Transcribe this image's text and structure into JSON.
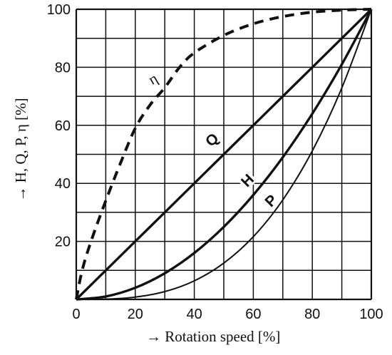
{
  "chart_data": {
    "type": "line",
    "xlabel": "→ Rotation speed [%]",
    "ylabel": "→ H, Q, P, η [%]",
    "xlim": [
      0,
      100
    ],
    "ylim": [
      0,
      100
    ],
    "x_ticks": [
      "0",
      "20",
      "40",
      "60",
      "80",
      "100"
    ],
    "y_ticks": [
      "20",
      "40",
      "60",
      "80",
      "100"
    ],
    "grid": true,
    "grid_step": 10,
    "series": [
      {
        "name": "Q",
        "style": "solid-thick",
        "x": [
          0,
          10,
          20,
          30,
          40,
          50,
          60,
          70,
          80,
          90,
          100
        ],
        "y": [
          0,
          10,
          20,
          30,
          40,
          50,
          60,
          70,
          80,
          90,
          100
        ]
      },
      {
        "name": "H",
        "style": "solid-thick",
        "x": [
          0,
          10,
          20,
          30,
          40,
          50,
          60,
          70,
          80,
          90,
          100
        ],
        "y": [
          0,
          1,
          4,
          9,
          16,
          25,
          36,
          49,
          64,
          81,
          100
        ]
      },
      {
        "name": "P",
        "style": "solid-thin",
        "x": [
          0,
          10,
          20,
          30,
          40,
          50,
          60,
          70,
          80,
          90,
          100
        ],
        "y": [
          0,
          0.1,
          0.8,
          2.7,
          6.4,
          12.5,
          21.6,
          34.3,
          51.2,
          72.9,
          100
        ]
      },
      {
        "name": "η",
        "style": "dashed-thick",
        "x": [
          0,
          2,
          5,
          10,
          15,
          20,
          25,
          30,
          35,
          40,
          50,
          60,
          70,
          80,
          90,
          100
        ],
        "y": [
          0,
          10,
          20,
          34,
          47,
          59,
          67,
          73,
          80,
          85,
          91,
          95,
          97.5,
          99,
          99.7,
          100
        ]
      }
    ]
  }
}
